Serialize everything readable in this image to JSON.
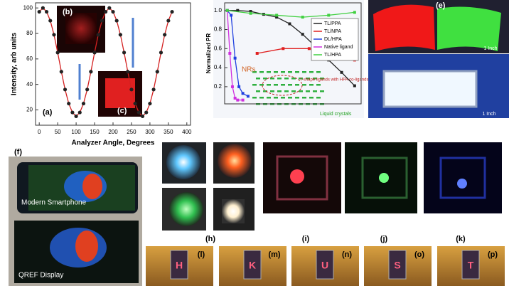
{
  "chart_data": [
    {
      "type": "scatter",
      "xlabel": "Analyzer Angle, Degrees",
      "ylabel": "Intensity, arb units",
      "color": "#222222",
      "line_color": "#d42020",
      "x": [
        0,
        10,
        20,
        30,
        40,
        50,
        60,
        70,
        80,
        90,
        100,
        110,
        120,
        130,
        140,
        150,
        160,
        170,
        180,
        190,
        200,
        210,
        220,
        230,
        240,
        250,
        260,
        270,
        280,
        290,
        300,
        310,
        320,
        330,
        340,
        350,
        360
      ],
      "values": [
        97,
        100,
        97,
        90,
        79,
        65,
        50,
        36,
        25,
        18,
        15,
        18,
        25,
        36,
        50,
        65,
        79,
        90,
        97,
        100,
        97,
        90,
        79,
        65,
        50,
        36,
        25,
        18,
        15,
        18,
        25,
        36,
        50,
        65,
        79,
        90,
        97
      ],
      "xlim": [
        -10,
        410
      ],
      "xticks": [
        0,
        50,
        100,
        150,
        200,
        250,
        300,
        350,
        400
      ],
      "ylim": [
        8,
        104
      ],
      "yticks": [
        20,
        40,
        60,
        80,
        100
      ]
    },
    {
      "type": "line",
      "ylabel": "Normalized PR",
      "xlim": [
        0,
        105
      ],
      "ylim": [
        0.02,
        1.08
      ],
      "yticks": [
        0.2,
        0.4,
        0.6,
        0.8,
        {
          "value": 1,
          "label": "1.0"
        }
      ],
      "legend": "upper right",
      "series": [
        {
          "name": "TL/PPA",
          "color": "#222222",
          "x": [
            2,
            10,
            20,
            30,
            40,
            50,
            60,
            70,
            80,
            90,
            100
          ],
          "values": [
            1.0,
            1.0,
            0.99,
            0.96,
            0.93,
            0.86,
            0.75,
            0.62,
            0.48,
            0.35,
            0.21
          ]
        },
        {
          "name": "TL/NPA",
          "color": "#e02020",
          "x": [
            25,
            45,
            65,
            100
          ],
          "values": [
            0.55,
            0.6,
            0.6,
            0.48
          ]
        },
        {
          "name": "DL/HPA",
          "color": "#2040e0",
          "x": [
            2,
            5,
            8,
            11,
            14,
            18
          ],
          "values": [
            1.0,
            0.95,
            0.5,
            0.2,
            0.13,
            0.1
          ]
        },
        {
          "name": "Native ligand",
          "color": "#d030e0",
          "x": [
            2,
            4,
            6,
            8,
            10,
            14
          ],
          "values": [
            1.0,
            0.55,
            0.2,
            0.08,
            0.06,
            0.06
          ]
        },
        {
          "name": "TL/HPA",
          "color": "#40d040",
          "x": [
            2,
            20,
            40,
            60,
            80,
            100
          ],
          "values": [
            1.0,
            0.97,
            0.95,
            0.93,
            0.95,
            0.98
          ]
        }
      ],
      "annotations": [
        "NRs",
        "T-shape ligands with HPA co-ligands",
        "Liquid crystals"
      ]
    }
  ],
  "panels": {
    "a": "(a)",
    "b": "(b)",
    "c": "(c)",
    "e": "(e)",
    "f": "(f)",
    "h": "(h)",
    "i": "(i)",
    "j": "(j)",
    "k": "(k)",
    "l": "(l)",
    "m": "(m)",
    "n": "(n)",
    "o": "(o)",
    "p": "(p)"
  },
  "scale_bars": [
    "1 Inch",
    "1 Inch"
  ],
  "phones": [
    "Modern Smartphone",
    "QREF Display"
  ],
  "letters": [
    "H",
    "K",
    "U",
    "S",
    "T"
  ]
}
